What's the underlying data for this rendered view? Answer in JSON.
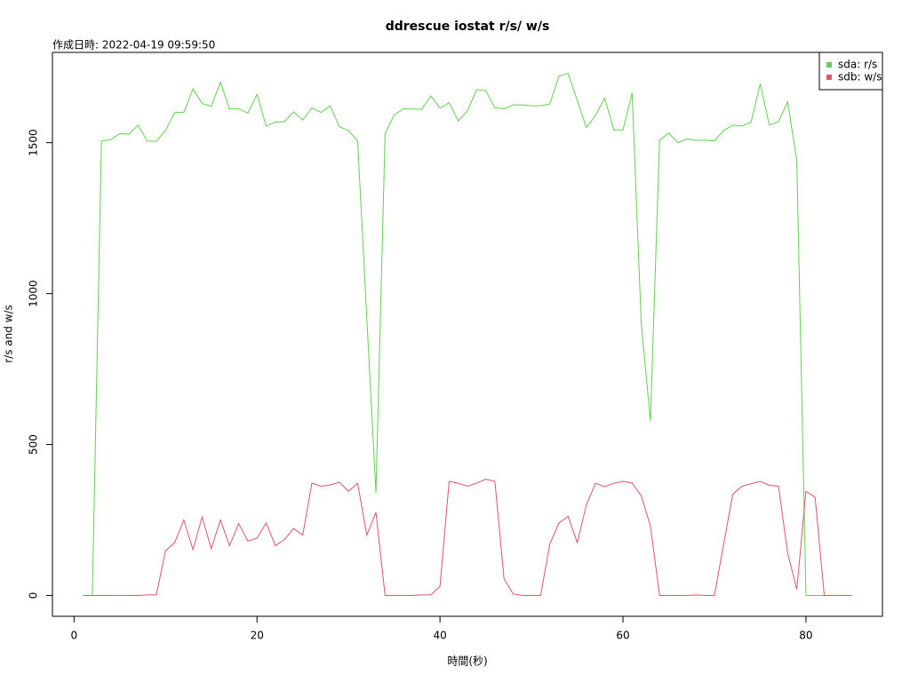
{
  "chart_data": {
    "type": "line",
    "title": "ddrescue iostat r/s/ w/s",
    "subtitle": "作成日時: 2022-04-19 09:59:50",
    "x_label": "時間(秒)",
    "y_label": "r/s and w/s",
    "x": [
      1,
      2,
      3,
      4,
      5,
      6,
      7,
      8,
      9,
      10,
      11,
      12,
      13,
      14,
      15,
      16,
      17,
      18,
      19,
      20,
      21,
      22,
      23,
      24,
      25,
      26,
      27,
      28,
      29,
      30,
      31,
      32,
      33,
      34,
      35,
      36,
      37,
      38,
      39,
      40,
      41,
      42,
      43,
      44,
      45,
      46,
      47,
      48,
      49,
      50,
      51,
      52,
      53,
      54,
      55,
      56,
      57,
      58,
      59,
      60,
      61,
      62,
      63,
      64,
      65,
      66,
      67,
      68,
      69,
      70,
      71,
      72,
      73,
      74,
      75,
      76,
      77,
      78,
      79,
      80,
      81,
      82,
      83,
      84,
      85
    ],
    "series": [
      {
        "name": "sda: r/s",
        "color": "#61D04F",
        "values": [
          0,
          0,
          1505,
          1510,
          1530,
          1528,
          1558,
          1505,
          1505,
          1540,
          1600,
          1600,
          1678,
          1630,
          1620,
          1700,
          1612,
          1612,
          1598,
          1660,
          1555,
          1568,
          1570,
          1602,
          1575,
          1615,
          1600,
          1622,
          1553,
          1540,
          1505,
          920,
          340,
          1530,
          1592,
          1612,
          1612,
          1610,
          1655,
          1615,
          1632,
          1572,
          1605,
          1675,
          1673,
          1615,
          1612,
          1625,
          1625,
          1622,
          1622,
          1628,
          1720,
          1730,
          1640,
          1550,
          1590,
          1648,
          1542,
          1542,
          1665,
          900,
          578,
          1508,
          1532,
          1500,
          1512,
          1507,
          1508,
          1506,
          1540,
          1558,
          1555,
          1568,
          1695,
          1558,
          1570,
          1635,
          1440,
          0,
          0,
          0,
          0,
          0,
          0
        ]
      },
      {
        "name": "sdb: w/s",
        "color": "#DF536B",
        "values": [
          0,
          0,
          0,
          0,
          0,
          0,
          0,
          2,
          2,
          148,
          175,
          250,
          152,
          260,
          155,
          250,
          165,
          238,
          180,
          190,
          240,
          165,
          185,
          222,
          200,
          372,
          362,
          366,
          375,
          345,
          372,
          200,
          275,
          0,
          0,
          0,
          0,
          2,
          2,
          30,
          378,
          372,
          362,
          372,
          385,
          378,
          55,
          5,
          0,
          0,
          0,
          170,
          240,
          262,
          175,
          300,
          372,
          360,
          372,
          378,
          372,
          330,
          230,
          0,
          0,
          0,
          0,
          2,
          0,
          0,
          170,
          335,
          362,
          370,
          378,
          365,
          362,
          140,
          20,
          345,
          325,
          0,
          0,
          0,
          0
        ]
      }
    ],
    "xlim": [
      -2.36,
      88.36
    ],
    "xticks": [
      0,
      20,
      40,
      60,
      80
    ],
    "ylim": [
      -69,
      1799
    ],
    "yticks": [
      0,
      500,
      1000,
      1500
    ],
    "grid": false,
    "legend": "top-right"
  }
}
